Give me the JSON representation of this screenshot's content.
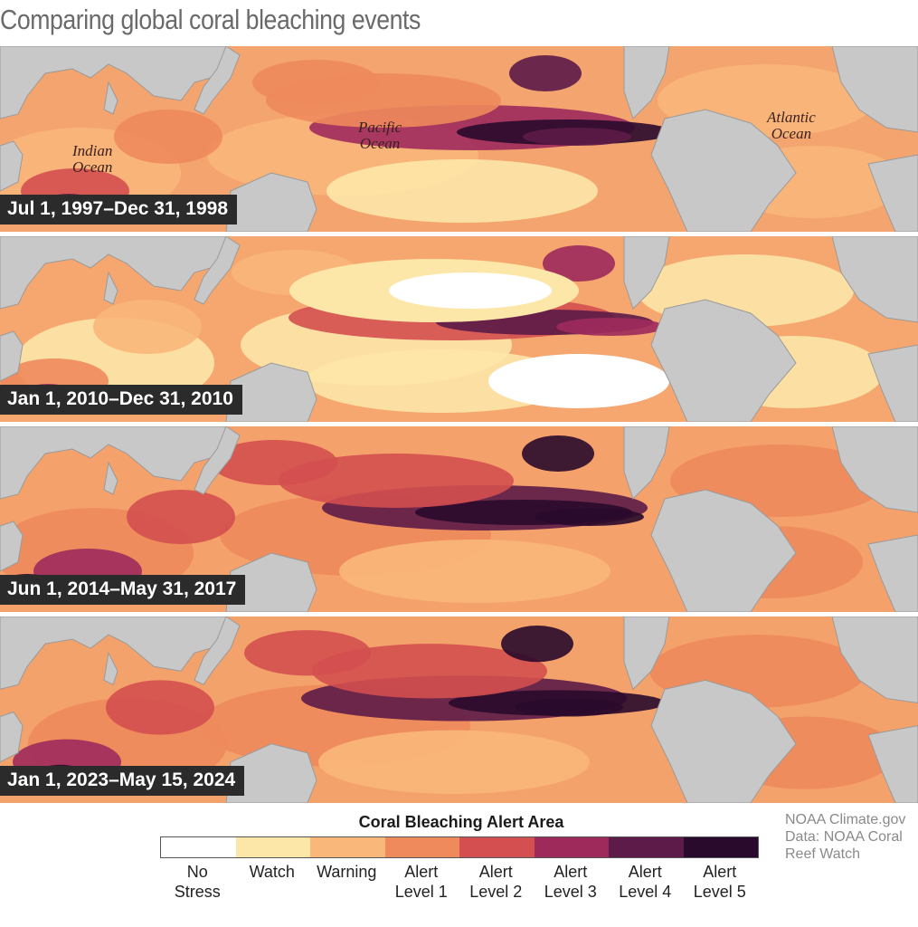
{
  "title": "Comparing global coral bleaching events",
  "colors": {
    "land": "#c8c8c8",
    "border": "#9a9a9a",
    "no_stress": "#ffffff",
    "watch": "#fde7a8",
    "warning": "#f9b77a",
    "alert1": "#ee8a5c",
    "alert2": "#d44f4f",
    "alert3": "#9e2a5c",
    "alert4": "#5c1b48",
    "alert5": "#2a0a2c"
  },
  "ocean_labels": {
    "indian": "Indian\nOcean",
    "pacific": "Pacific\nOcean",
    "atlantic": "Atlantic\nOcean"
  },
  "panels": [
    {
      "label": "Jul 1, 1997–Dec 31, 1998",
      "intensity": 0.55
    },
    {
      "label": "Jan 1, 2010–Dec 31, 2010",
      "intensity": 0.35
    },
    {
      "label": "Jun 1, 2014–May 31, 2017",
      "intensity": 0.8
    },
    {
      "label": "Jan 1, 2023–May 15, 2024",
      "intensity": 0.75
    }
  ],
  "legend": {
    "title": "Coral Bleaching Alert Area",
    "items": [
      {
        "label": "No\nStress",
        "color": "#ffffff"
      },
      {
        "label": "Watch",
        "color": "#fde7a8"
      },
      {
        "label": "Warning",
        "color": "#f9b77a"
      },
      {
        "label": "Alert\nLevel 1",
        "color": "#ee8a5c"
      },
      {
        "label": "Alert\nLevel 2",
        "color": "#d44f4f"
      },
      {
        "label": "Alert\nLevel 3",
        "color": "#9e2a5c"
      },
      {
        "label": "Alert\nLevel 4",
        "color": "#5c1b48"
      },
      {
        "label": "Alert\nLevel 5",
        "color": "#2a0a2c"
      }
    ]
  },
  "credit": "NOAA Climate.gov\nData: NOAA Coral\nReef Watch"
}
